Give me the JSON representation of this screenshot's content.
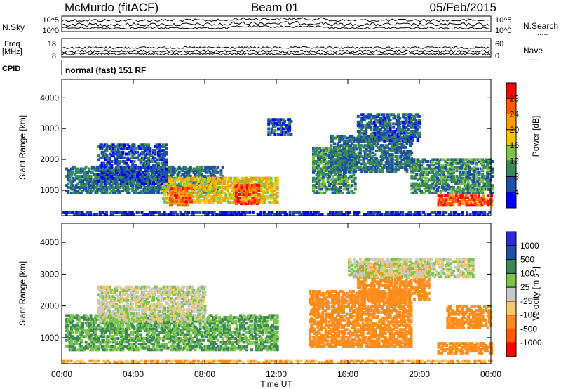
{
  "header": {
    "station": "McMurdo (fitACF)",
    "beam": "Beam 01",
    "date": "05/Feb/2015"
  },
  "noise_panel": {
    "left_label": "N.Sky",
    "right_label": "N.Search",
    "right_dots": "........",
    "left_ticks": [
      "10^5",
      "10^0"
    ],
    "right_ticks": [
      "10^5",
      "10^0"
    ]
  },
  "freq_panel": {
    "left_label_1": "Freq.",
    "left_label_2": "[MHz]",
    "right_label": "Nave",
    "right_dots": "....",
    "left_ticks": [
      "18",
      "8"
    ],
    "right_ticks": [
      "60",
      "0"
    ]
  },
  "cpid": {
    "label": "CPID",
    "value": "normal (fast) 151 RF"
  },
  "axes": {
    "ylabel": "Slant Range [km]",
    "xlabel": "Time UT",
    "y_ticks": [
      "1000",
      "2000",
      "3000",
      "4000"
    ],
    "x_ticks": [
      "00:00",
      "04:00",
      "08:00",
      "12:00",
      "16:00",
      "20:00",
      "00:00"
    ]
  },
  "colors": {
    "power": [
      "#0000ff",
      "#1e4fa6",
      "#3a8a58",
      "#7cc34a",
      "#f5c400",
      "#ff9a00",
      "#ff5a00",
      "#ff0000"
    ],
    "velocity": [
      "#ff0000",
      "#ff5a00",
      "#ff8c1a",
      "#f5c86a",
      "#c8c8c8",
      "#7cc34a",
      "#3a8a58",
      "#1e4fa6",
      "#2a2ad8"
    ]
  },
  "chart_data": [
    {
      "type": "heatmap",
      "title": "Power",
      "ylabel": "Slant Range [km]",
      "xlabel": "Time UT",
      "x_unit": "hours UT",
      "ylim": [
        180,
        4600
      ],
      "xlim": [
        0,
        24
      ],
      "colorbar": {
        "label": "Power [dB]",
        "ticks": [
          "4",
          "8",
          "12",
          "16",
          "20",
          "24",
          "28"
        ],
        "range": [
          0,
          32
        ]
      },
      "regions": [
        {
          "t0": 0.2,
          "t1": 9.0,
          "r0": 900,
          "r1": 1800,
          "v": 8
        },
        {
          "t0": 5.6,
          "t1": 12.0,
          "r0": 600,
          "r1": 1400,
          "v": 18
        },
        {
          "t0": 6.0,
          "t1": 7.2,
          "r0": 500,
          "r1": 1100,
          "v": 26
        },
        {
          "t0": 9.6,
          "t1": 11.0,
          "r0": 550,
          "r1": 1200,
          "v": 26
        },
        {
          "t0": 2.0,
          "t1": 5.8,
          "r0": 1200,
          "r1": 2500,
          "v": 6
        },
        {
          "t0": 14.0,
          "t1": 16.4,
          "r0": 900,
          "r1": 2400,
          "v": 10
        },
        {
          "t0": 15.0,
          "t1": 19.5,
          "r0": 1600,
          "r1": 2800,
          "v": 8
        },
        {
          "t0": 16.5,
          "t1": 20.0,
          "r0": 2600,
          "r1": 3500,
          "v": 7
        },
        {
          "t0": 19.5,
          "t1": 24.0,
          "r0": 900,
          "r1": 2000,
          "v": 10
        },
        {
          "t0": 21.0,
          "t1": 24.0,
          "r0": 500,
          "r1": 850,
          "v": 27
        },
        {
          "t0": 0.0,
          "t1": 24.0,
          "r0": 200,
          "r1": 300,
          "v": 4
        },
        {
          "t0": 11.5,
          "t1": 12.8,
          "r0": 2800,
          "r1": 3300,
          "v": 6
        }
      ]
    },
    {
      "type": "heatmap",
      "title": "Velocity",
      "ylabel": "Slant Range [km]",
      "xlabel": "Time UT",
      "x_unit": "hours UT",
      "ylim": [
        180,
        4600
      ],
      "xlim": [
        0,
        24
      ],
      "colorbar": {
        "label": "Velocity [m s^-1]",
        "ticks": [
          "1000",
          "500",
          "100",
          "25",
          "-25",
          "-100",
          "-500",
          "-1000"
        ]
      },
      "regions": [
        {
          "t0": 0.2,
          "t1": 12.0,
          "r0": 600,
          "r1": 1700,
          "v": 100
        },
        {
          "t0": 2.0,
          "t1": 8.0,
          "r0": 1500,
          "r1": 2600,
          "v": 0
        },
        {
          "t0": 0.0,
          "t1": 24.0,
          "r0": 200,
          "r1": 300,
          "v": -100
        },
        {
          "t0": 13.8,
          "t1": 19.5,
          "r0": 700,
          "r1": 2500,
          "v": -200
        },
        {
          "t0": 16.5,
          "t1": 20.5,
          "r0": 2200,
          "r1": 3300,
          "v": -200
        },
        {
          "t0": 21.0,
          "t1": 24.0,
          "r0": 500,
          "r1": 850,
          "v": -300
        },
        {
          "t0": 21.5,
          "t1": 24.0,
          "r0": 1300,
          "r1": 2000,
          "v": -200
        },
        {
          "t0": 16.0,
          "t1": 23.0,
          "r0": 2900,
          "r1": 3500,
          "v": 0
        }
      ]
    }
  ]
}
